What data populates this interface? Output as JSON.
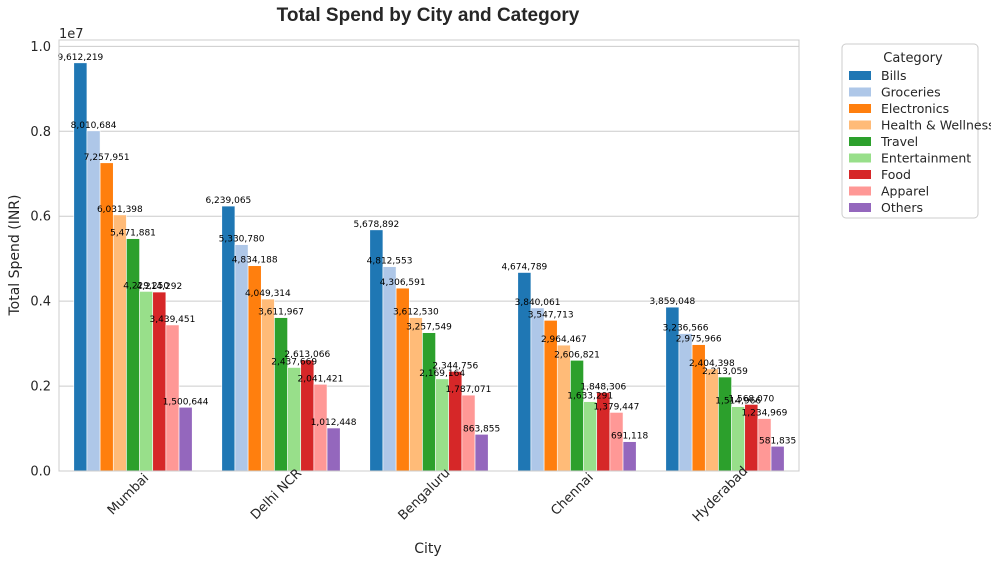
{
  "chart_data": {
    "type": "bar",
    "title": "Total Spend by City and Category",
    "xlabel": "City",
    "ylabel": "Total Spend (INR)",
    "y_offset_label": "1e7",
    "ylim": [
      0,
      10150000
    ],
    "yticks": [
      0,
      2000000,
      4000000,
      6000000,
      8000000,
      10000000
    ],
    "ytick_labels": [
      "0.0",
      "0.2",
      "0.4",
      "0.6",
      "0.8",
      "1.0"
    ],
    "grid": true,
    "legend_title": "Category",
    "legend_position": "outside-top-right",
    "categories": [
      "Mumbai",
      "Delhi NCR",
      "Bengaluru",
      "Chennai",
      "Hyderabad"
    ],
    "series": [
      {
        "name": "Bills",
        "color": "#1f77b4",
        "values": [
          9612219,
          6239065,
          5678892,
          4674789,
          3859048
        ],
        "labels": [
          "9,612,219",
          "6,239,065",
          "5,678,892",
          "4,674,789",
          "3,859,048"
        ]
      },
      {
        "name": "Groceries",
        "color": "#aec7e8",
        "values": [
          8010684,
          5330780,
          4812553,
          3840061,
          3236566
        ],
        "labels": [
          "8,010,684",
          "5,330,780",
          "4,812,553",
          "3,840,061",
          "3,236,566"
        ]
      },
      {
        "name": "Electronics",
        "color": "#ff7f0e",
        "values": [
          7257951,
          4834188,
          4306591,
          3547713,
          2975966
        ],
        "labels": [
          "7,257,951",
          "4,834,188",
          "4,306,591",
          "3,547,713",
          "2,975,966"
        ]
      },
      {
        "name": "Health & Wellness",
        "color": "#ffbb78",
        "values": [
          6031398,
          4049314,
          3612530,
          2964467,
          2404398
        ],
        "labels": [
          "6,031,398",
          "4,049,314",
          "3,612,530",
          "2,964,467",
          "2,404,398"
        ]
      },
      {
        "name": "Travel",
        "color": "#2ca02c",
        "values": [
          5471881,
          3611967,
          3257549,
          2606821,
          2213059
        ],
        "labels": [
          "5,471,881",
          "3,611,967",
          "3,257,549",
          "2,606,821",
          "2,213,059"
        ]
      },
      {
        "name": "Entertainment",
        "color": "#98df8a",
        "values": [
          4229250,
          2437669,
          2169164,
          1633291,
          1514966
        ],
        "labels": [
          "4,229,250",
          "2,437,669",
          "2,169,164",
          "1,633,291",
          "1,514,966"
        ]
      },
      {
        "name": "Food",
        "color": "#d62728",
        "values": [
          4214292,
          2613066,
          2344756,
          1848306,
          1568070
        ],
        "labels": [
          "4,214,292",
          "2,613,066",
          "2,344,756",
          "1,848,306",
          "1,568,070"
        ]
      },
      {
        "name": "Apparel",
        "color": "#ff9896",
        "values": [
          3439451,
          2041421,
          1787071,
          1379447,
          1234969
        ],
        "labels": [
          "3,439,451",
          "2,041,421",
          "1,787,071",
          "1,379,447",
          "1,234,969"
        ]
      },
      {
        "name": "Others",
        "color": "#9467bd",
        "values": [
          1500644,
          1012448,
          863855,
          691118,
          581835
        ],
        "labels": [
          "1,500,644",
          "1,012,448",
          "863,855",
          "691,118",
          "581,835"
        ]
      }
    ]
  }
}
